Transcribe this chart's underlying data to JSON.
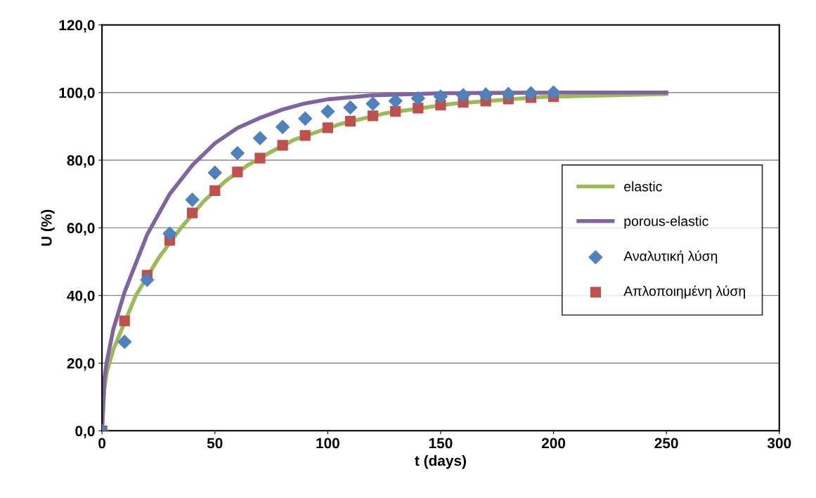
{
  "chart_data": {
    "type": "line",
    "xlabel": "t (days)",
    "ylabel": "U (%)",
    "xlim": [
      0,
      300
    ],
    "xticks": [
      0,
      50,
      100,
      150,
      200,
      250,
      300
    ],
    "ylim": [
      0,
      120
    ],
    "yticks": [
      {
        "value": 0,
        "label": "0,0"
      },
      {
        "value": 20,
        "label": "20,0"
      },
      {
        "value": 40,
        "label": "40,0"
      },
      {
        "value": 60,
        "label": "60,0"
      },
      {
        "value": 80,
        "label": "80,0"
      },
      {
        "value": 100,
        "label": "100,0"
      },
      {
        "value": 120,
        "label": "120,0"
      }
    ],
    "grid": "y",
    "legend": "right",
    "series": [
      {
        "name": "elastic",
        "color": "#9bbb59",
        "marker": "none",
        "x": [
          0,
          1,
          2,
          5,
          15,
          25,
          35,
          45,
          55,
          65,
          75,
          85,
          105,
          125,
          155,
          195,
          250
        ],
        "values": [
          0,
          12,
          17,
          24,
          40,
          51,
          60,
          67.8,
          74,
          78.7,
          82.5,
          86,
          90.6,
          93.8,
          96.7,
          98.7,
          99.6
        ]
      },
      {
        "name": "porous-elastic",
        "color": "#8064a2",
        "marker": "none",
        "x": [
          0,
          1,
          2,
          5,
          10,
          20,
          30,
          40,
          50,
          60,
          70,
          80,
          90,
          100,
          120,
          150,
          200,
          250
        ],
        "values": [
          0,
          15,
          20,
          30,
          41,
          58,
          70,
          78.5,
          85,
          89.5,
          92.5,
          95,
          96.8,
          98,
          99.2,
          99.8,
          100,
          100
        ]
      },
      {
        "name": "Αναλυτική λύση",
        "type": "scatter",
        "color": "#4f81bd",
        "marker": "diamond",
        "x": [
          0,
          10,
          20,
          30,
          40,
          50,
          60,
          70,
          80,
          90,
          100,
          110,
          120,
          130,
          140,
          150,
          160,
          170,
          180,
          190,
          200
        ],
        "values": [
          0,
          26.3,
          44.6,
          58.3,
          68.3,
          76.3,
          82.1,
          86.5,
          89.8,
          92.3,
          94.4,
          95.6,
          96.7,
          97.5,
          98.3,
          98.8,
          99.2,
          99.4,
          99.6,
          99.8,
          100
        ]
      },
      {
        "name": "Απλοποιημένη λύση",
        "type": "scatter",
        "color": "#c0504d",
        "marker": "square",
        "x": [
          0,
          10,
          20,
          30,
          40,
          50,
          60,
          70,
          80,
          90,
          100,
          110,
          120,
          130,
          140,
          150,
          160,
          170,
          180,
          190,
          200
        ],
        "values": [
          0,
          32.5,
          46,
          56.3,
          64.4,
          71,
          76.5,
          80.6,
          84.4,
          87.3,
          89.6,
          91.5,
          93.1,
          94.4,
          95.4,
          96.3,
          97.1,
          97.5,
          98.1,
          98.5,
          98.8
        ]
      }
    ]
  }
}
